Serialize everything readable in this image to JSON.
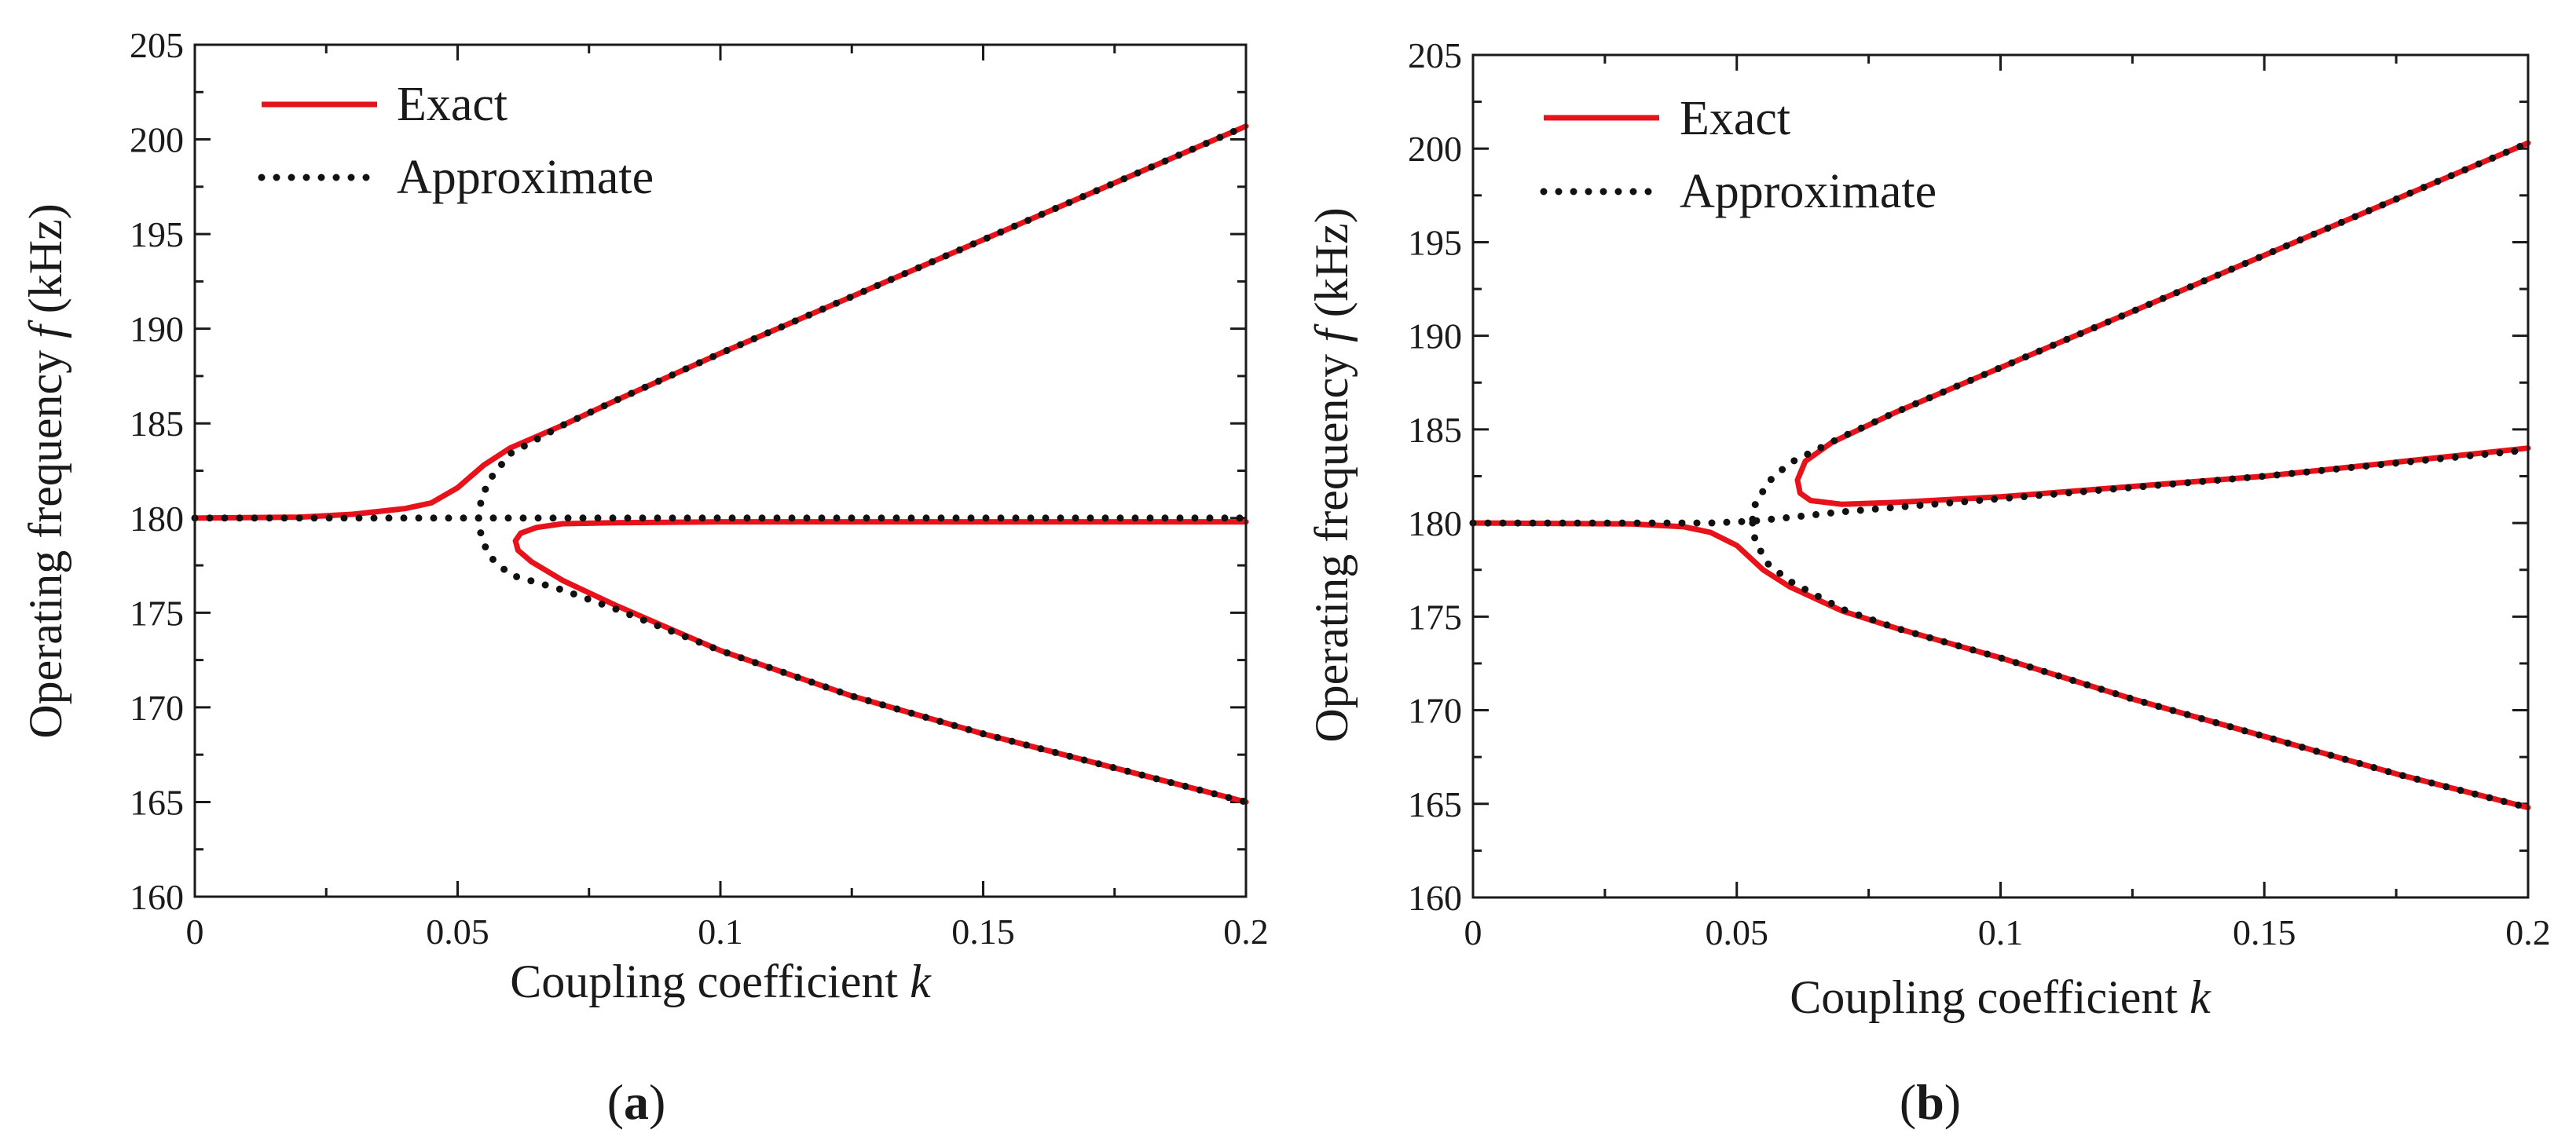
{
  "colors": {
    "exact": "#e8121b",
    "approximate": "#111111",
    "axis": "#1a1a1a"
  },
  "chart_data": [
    {
      "type": "line",
      "caption": {
        "open": "(",
        "letter": "a",
        "close": ")"
      },
      "xlabel": {
        "text": "Coupling coefficient ",
        "var": "k"
      },
      "ylabel": {
        "text": "Operating frequency ",
        "var": "f",
        "unit": " (kHz)"
      },
      "xlim": [
        0,
        0.2
      ],
      "ylim": [
        160,
        205
      ],
      "xticks": [
        0,
        0.05,
        0.1,
        0.15,
        0.2
      ],
      "xtick_labels": [
        "0",
        "0.05",
        "0.1",
        "0.15",
        "0.2"
      ],
      "yticks": [
        160,
        165,
        170,
        175,
        180,
        185,
        190,
        195,
        200,
        205
      ],
      "ytick_labels": [
        "160",
        "165",
        "170",
        "175",
        "180",
        "185",
        "190",
        "195",
        "200",
        "205"
      ],
      "legend": {
        "position": "top-left",
        "entries": [
          "Exact",
          "Approximate"
        ]
      },
      "series": [
        {
          "name": "Exact",
          "branch": "upper",
          "style": "solid",
          "color": "#e8121b",
          "points": [
            [
              0,
              180
            ],
            [
              0.02,
              180.05
            ],
            [
              0.03,
              180.2
            ],
            [
              0.04,
              180.5
            ],
            [
              0.045,
              180.8
            ],
            [
              0.05,
              181.6
            ],
            [
              0.055,
              182.8
            ],
            [
              0.06,
              183.7
            ],
            [
              0.07,
              184.9
            ],
            [
              0.08,
              186.2
            ],
            [
              0.1,
              188.7
            ],
            [
              0.125,
              191.7
            ],
            [
              0.15,
              194.7
            ],
            [
              0.175,
              197.7
            ],
            [
              0.2,
              200.7
            ]
          ]
        },
        {
          "name": "Exact",
          "branch": "lower-fold",
          "style": "solid",
          "color": "#e8121b",
          "points": [
            [
              0.2,
              179.8
            ],
            [
              0.15,
              179.8
            ],
            [
              0.1,
              179.8
            ],
            [
              0.08,
              179.75
            ],
            [
              0.07,
              179.7
            ],
            [
              0.065,
              179.5
            ],
            [
              0.062,
              179.2
            ],
            [
              0.061,
              178.8
            ],
            [
              0.0615,
              178.3
            ],
            [
              0.064,
              177.7
            ],
            [
              0.07,
              176.7
            ],
            [
              0.08,
              175.4
            ],
            [
              0.1,
              173.0
            ],
            [
              0.125,
              170.6
            ],
            [
              0.15,
              168.6
            ],
            [
              0.175,
              166.8
            ],
            [
              0.2,
              165.0
            ]
          ]
        },
        {
          "name": "Approximate",
          "branch": "upper",
          "style": "dotted",
          "color": "#111111",
          "points": [
            [
              0.054,
              180
            ],
            [
              0.0545,
              181.0
            ],
            [
              0.056,
              182.0
            ],
            [
              0.06,
              183.4
            ],
            [
              0.07,
              184.9
            ],
            [
              0.08,
              186.2
            ],
            [
              0.1,
              188.7
            ],
            [
              0.125,
              191.7
            ],
            [
              0.15,
              194.7
            ],
            [
              0.175,
              197.7
            ],
            [
              0.2,
              200.7
            ]
          ]
        },
        {
          "name": "Approximate",
          "branch": "center",
          "style": "dotted",
          "color": "#111111",
          "points": [
            [
              0,
              180
            ],
            [
              0.2,
              180
            ]
          ]
        },
        {
          "name": "Approximate",
          "branch": "lower",
          "style": "dotted",
          "color": "#111111",
          "points": [
            [
              0.054,
              180
            ],
            [
              0.0545,
              179.0
            ],
            [
              0.056,
              178.0
            ],
            [
              0.06,
              177.0
            ],
            [
              0.07,
              176.2
            ],
            [
              0.08,
              175.2
            ],
            [
              0.1,
              173.0
            ],
            [
              0.125,
              170.6
            ],
            [
              0.15,
              168.6
            ],
            [
              0.175,
              166.8
            ],
            [
              0.2,
              165.0
            ]
          ]
        }
      ]
    },
    {
      "type": "line",
      "caption": {
        "open": "(",
        "letter": "b",
        "close": ")"
      },
      "xlabel": {
        "text": "Coupling coefficient ",
        "var": "k"
      },
      "ylabel": {
        "text": "Operating frequency ",
        "var": "f",
        "unit": " (kHz)"
      },
      "xlim": [
        0,
        0.2
      ],
      "ylim": [
        160,
        205
      ],
      "xticks": [
        0,
        0.05,
        0.1,
        0.15,
        0.2
      ],
      "xtick_labels": [
        "0",
        "0.05",
        "0.1",
        "0.15",
        "0.2"
      ],
      "yticks": [
        160,
        165,
        170,
        175,
        180,
        185,
        190,
        195,
        200,
        205
      ],
      "ytick_labels": [
        "160",
        "165",
        "170",
        "175",
        "180",
        "185",
        "190",
        "195",
        "200",
        "205"
      ],
      "legend": {
        "position": "top-left",
        "entries": [
          "Exact",
          "Approximate"
        ]
      },
      "series": [
        {
          "name": "Exact",
          "branch": "upper-fold",
          "style": "solid",
          "color": "#e8121b",
          "points": [
            [
              0.2,
              184.0
            ],
            [
              0.15,
              182.5
            ],
            [
              0.1,
              181.4
            ],
            [
              0.08,
              181.1
            ],
            [
              0.07,
              181.0
            ],
            [
              0.064,
              181.2
            ],
            [
              0.062,
              181.6
            ],
            [
              0.0615,
              182.3
            ],
            [
              0.063,
              183.3
            ],
            [
              0.068,
              184.3
            ],
            [
              0.08,
              185.9
            ],
            [
              0.1,
              188.3
            ],
            [
              0.125,
              191.3
            ],
            [
              0.15,
              194.3
            ],
            [
              0.175,
              197.3
            ],
            [
              0.2,
              200.3
            ]
          ]
        },
        {
          "name": "Exact",
          "branch": "lower",
          "style": "solid",
          "color": "#e8121b",
          "points": [
            [
              0,
              180
            ],
            [
              0.03,
              179.95
            ],
            [
              0.04,
              179.8
            ],
            [
              0.045,
              179.5
            ],
            [
              0.05,
              178.8
            ],
            [
              0.055,
              177.5
            ],
            [
              0.06,
              176.6
            ],
            [
              0.07,
              175.3
            ],
            [
              0.08,
              174.4
            ],
            [
              0.1,
              172.8
            ],
            [
              0.125,
              170.6
            ],
            [
              0.15,
              168.6
            ],
            [
              0.175,
              166.6
            ],
            [
              0.2,
              164.8
            ]
          ]
        },
        {
          "name": "Approximate",
          "branch": "upper",
          "style": "dotted",
          "color": "#111111",
          "points": [
            [
              0.053,
              180.2
            ],
            [
              0.0535,
              181.0
            ],
            [
              0.056,
              182.2
            ],
            [
              0.06,
              183.2
            ],
            [
              0.07,
              184.6
            ],
            [
              0.08,
              185.9
            ],
            [
              0.1,
              188.3
            ],
            [
              0.125,
              191.3
            ],
            [
              0.15,
              194.3
            ],
            [
              0.175,
              197.3
            ],
            [
              0.2,
              200.3
            ]
          ]
        },
        {
          "name": "Approximate",
          "branch": "center",
          "style": "dotted",
          "color": "#111111",
          "points": [
            [
              0,
              180
            ],
            [
              0.045,
              180
            ],
            [
              0.053,
              180.1
            ],
            [
              0.06,
              180.3
            ],
            [
              0.07,
              180.6
            ],
            [
              0.1,
              181.3
            ],
            [
              0.15,
              182.5
            ],
            [
              0.2,
              183.9
            ]
          ]
        },
        {
          "name": "Approximate",
          "branch": "lower",
          "style": "dotted",
          "color": "#111111",
          "points": [
            [
              0.053,
              180.0
            ],
            [
              0.0535,
              179.0
            ],
            [
              0.056,
              177.8
            ],
            [
              0.06,
              176.9
            ],
            [
              0.07,
              175.4
            ],
            [
              0.08,
              174.4
            ],
            [
              0.1,
              172.8
            ],
            [
              0.125,
              170.6
            ],
            [
              0.15,
              168.6
            ],
            [
              0.175,
              166.6
            ],
            [
              0.2,
              164.8
            ]
          ]
        }
      ]
    }
  ]
}
